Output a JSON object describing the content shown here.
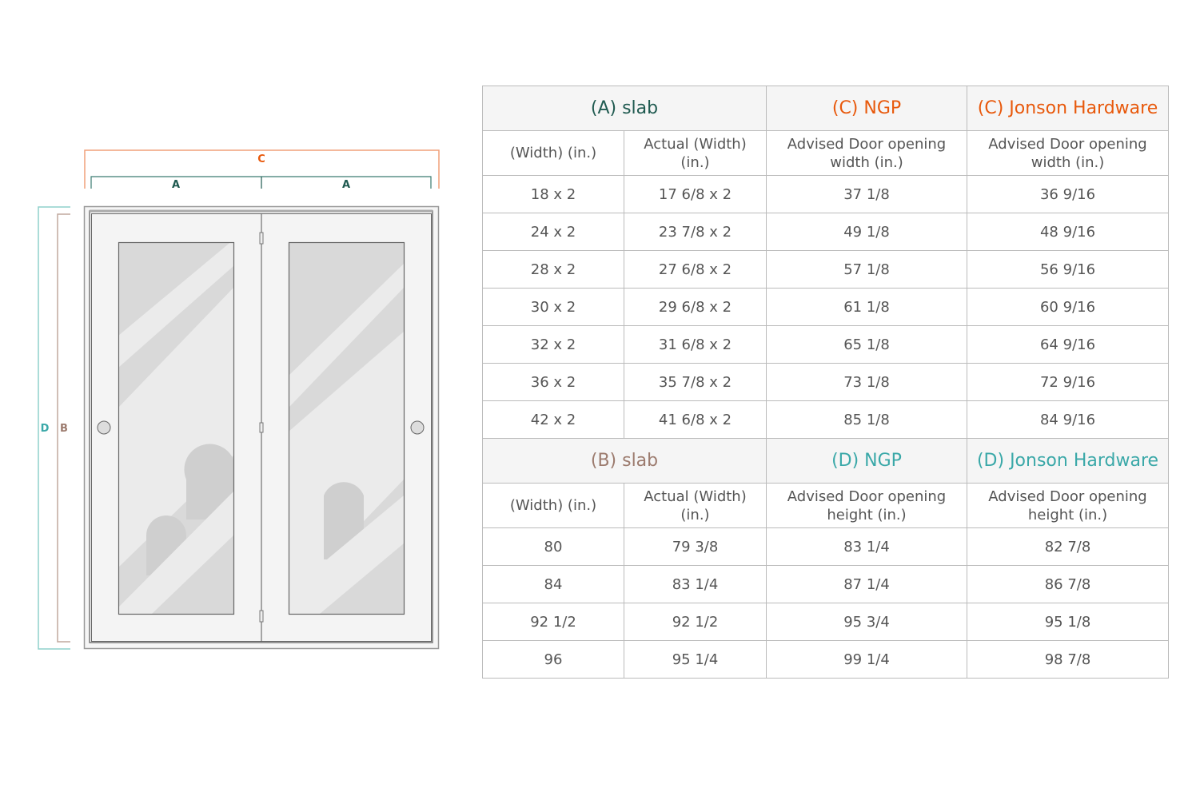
{
  "diagram": {
    "labels": {
      "c": "C",
      "a_left": "A",
      "a_right": "A",
      "d": "D",
      "b": "B"
    },
    "colors": {
      "A": "#1f5a50",
      "B": "#9c7b6e",
      "C": "#e8590c",
      "D": "#3aa8a8"
    }
  },
  "width_table": {
    "headers": [
      "(A) slab",
      "(C) NGP",
      "(C) Jonson Hardware"
    ],
    "subheaders": [
      "(Width) (in.)",
      "Actual (Width) (in.)",
      "Advised Door opening width (in.)",
      "Advised Door opening width (in.)"
    ],
    "rows": [
      [
        "18 x 2",
        "17 6/8 x 2",
        "37 1/8",
        "36 9/16"
      ],
      [
        "24 x 2",
        "23 7/8 x 2",
        "49 1/8",
        "48 9/16"
      ],
      [
        "28 x 2",
        "27 6/8 x 2",
        "57 1/8",
        "56 9/16"
      ],
      [
        "30 x 2",
        "29 6/8 x 2",
        "61 1/8",
        "60 9/16"
      ],
      [
        "32 x 2",
        "31 6/8 x 2",
        "65 1/8",
        "64 9/16"
      ],
      [
        "36 x 2",
        "35 7/8 x 2",
        "73 1/8",
        "72 9/16"
      ],
      [
        "42 x 2",
        "41 6/8 x 2",
        "85 1/8",
        "84 9/16"
      ]
    ]
  },
  "height_table": {
    "headers": [
      "(B) slab",
      "(D) NGP",
      "(D) Jonson Hardware"
    ],
    "subheaders": [
      "(Width) (in.)",
      "Actual (Width) (in.)",
      "Advised Door opening height (in.)",
      "Advised Door opening height (in.)"
    ],
    "rows": [
      [
        "80",
        "79 3/8",
        "83 1/4",
        "82 7/8"
      ],
      [
        "84",
        "83 1/4",
        "87 1/4",
        "86 7/8"
      ],
      [
        "92 1/2",
        "92 1/2",
        "95 3/4",
        "95 1/8"
      ],
      [
        "96",
        "95 1/4",
        "99 1/4",
        "98 7/8"
      ]
    ]
  }
}
